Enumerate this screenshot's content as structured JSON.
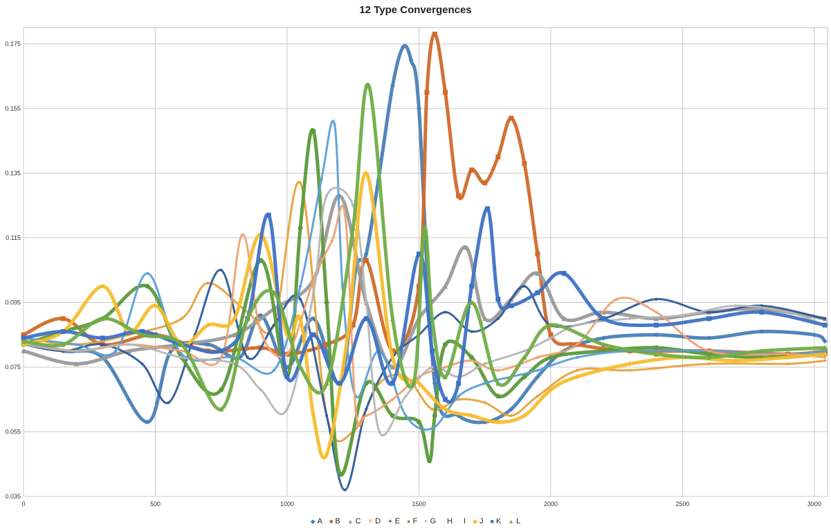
{
  "chart_data": {
    "type": "scatter",
    "title": "12 Type Convergences",
    "xlabel": "",
    "ylabel": "",
    "xlim": [
      0,
      3050
    ],
    "ylim": [
      0.035,
      0.18
    ],
    "x_ticks": [
      0,
      500,
      1000,
      1500,
      2000,
      2500,
      3000
    ],
    "y_ticks": [
      0.035,
      0.055,
      0.075,
      0.095,
      0.115,
      0.135,
      0.155,
      0.175
    ],
    "y_tick_labels": [
      "0.035",
      "0.055",
      "0.075",
      "0.095",
      "0.115",
      "0.135",
      "0.155",
      "0.175"
    ],
    "grid": true,
    "legend_position": "bottom",
    "series": [
      {
        "name": "A",
        "marker": "diamond",
        "color": "#4a7fb5",
        "x": [
          0,
          150,
          300,
          470,
          560,
          700,
          820,
          900,
          1000,
          1100,
          1200,
          1260,
          1300,
          1350,
          1400,
          1440,
          1470,
          1500,
          1560,
          1650,
          1750,
          1850,
          1950,
          2050,
          2200,
          2400,
          2600,
          2800,
          3000,
          3040
        ],
        "y": [
          0.083,
          0.08,
          0.078,
          0.058,
          0.08,
          0.082,
          0.078,
          0.091,
          0.075,
          0.09,
          0.07,
          0.105,
          0.11,
          0.135,
          0.162,
          0.174,
          0.17,
          0.155,
          0.07,
          0.06,
          0.058,
          0.062,
          0.072,
          0.08,
          0.084,
          0.085,
          0.084,
          0.086,
          0.085,
          0.083
        ]
      },
      {
        "name": "B",
        "marker": "square",
        "color": "#d06a2a",
        "x": [
          0,
          150,
          300,
          500,
          700,
          900,
          1000,
          1150,
          1250,
          1300,
          1400,
          1500,
          1530,
          1560,
          1600,
          1650,
          1700,
          1750,
          1800,
          1850,
          1900,
          1950,
          2000,
          2100,
          2300,
          2600,
          2900,
          3040
        ],
        "y": [
          0.085,
          0.09,
          0.082,
          0.085,
          0.08,
          0.081,
          0.079,
          0.082,
          0.088,
          0.108,
          0.08,
          0.1,
          0.16,
          0.178,
          0.16,
          0.128,
          0.136,
          0.132,
          0.14,
          0.152,
          0.138,
          0.11,
          0.085,
          0.082,
          0.08,
          0.08,
          0.079,
          0.08
        ]
      },
      {
        "name": "C",
        "marker": "triangle",
        "color": "#9a9a9a",
        "x": [
          0,
          200,
          400,
          600,
          800,
          950,
          1100,
          1200,
          1300,
          1400,
          1500,
          1600,
          1680,
          1750,
          1850,
          1950,
          2050,
          2200,
          2400,
          2600,
          2800,
          3040
        ],
        "y": [
          0.08,
          0.076,
          0.08,
          0.082,
          0.085,
          0.093,
          0.102,
          0.128,
          0.095,
          0.075,
          0.09,
          0.1,
          0.112,
          0.09,
          0.096,
          0.104,
          0.09,
          0.092,
          0.09,
          0.092,
          0.093,
          0.09
        ]
      },
      {
        "name": "D",
        "marker": "x",
        "color": "#e6a23c",
        "x": [
          0,
          200,
          400,
          600,
          700,
          850,
          950,
          1050,
          1150,
          1250,
          1350,
          1450,
          1550,
          1650,
          1750,
          1850,
          1950,
          2100,
          2300,
          2600,
          2900,
          3040
        ],
        "y": [
          0.084,
          0.082,
          0.085,
          0.09,
          0.101,
          0.092,
          0.088,
          0.132,
          0.06,
          0.055,
          0.07,
          0.072,
          0.062,
          0.065,
          0.064,
          0.06,
          0.066,
          0.074,
          0.074,
          0.076,
          0.076,
          0.077
        ]
      },
      {
        "name": "E",
        "marker": "star",
        "color": "#2e5a9a",
        "x": [
          0,
          150,
          300,
          450,
          550,
          650,
          750,
          850,
          950,
          1050,
          1150,
          1220,
          1300,
          1400,
          1500,
          1600,
          1700,
          1800,
          1900,
          2000,
          2200,
          2400,
          2600,
          2800,
          3040
        ],
        "y": [
          0.082,
          0.08,
          0.082,
          0.076,
          0.064,
          0.085,
          0.105,
          0.078,
          0.088,
          0.096,
          0.06,
          0.037,
          0.062,
          0.078,
          0.085,
          0.092,
          0.086,
          0.09,
          0.1,
          0.088,
          0.09,
          0.096,
          0.092,
          0.094,
          0.09
        ]
      },
      {
        "name": "F",
        "marker": "circle",
        "color": "#5b9a3b",
        "x": [
          0,
          150,
          300,
          470,
          600,
          750,
          900,
          1000,
          1050,
          1100,
          1150,
          1200,
          1300,
          1400,
          1500,
          1540,
          1560,
          1600,
          1700,
          1800,
          1900,
          2000,
          2200,
          2400,
          2600,
          2800,
          3040
        ],
        "y": [
          0.082,
          0.086,
          0.09,
          0.1,
          0.078,
          0.068,
          0.108,
          0.072,
          0.118,
          0.148,
          0.095,
          0.042,
          0.07,
          0.06,
          0.058,
          0.046,
          0.06,
          0.082,
          0.078,
          0.066,
          0.072,
          0.078,
          0.08,
          0.081,
          0.079,
          0.078,
          0.079
        ]
      },
      {
        "name": "G",
        "marker": "plus",
        "color": "#5aa0d6",
        "x": [
          0,
          200,
          350,
          470,
          600,
          800,
          950,
          1050,
          1130,
          1180,
          1210,
          1260,
          1350,
          1450,
          1550,
          1650,
          1750,
          1850,
          1950,
          2100,
          2300,
          2600,
          2900,
          3040
        ],
        "y": [
          0.084,
          0.082,
          0.08,
          0.104,
          0.079,
          0.078,
          0.074,
          0.1,
          0.133,
          0.15,
          0.1,
          0.066,
          0.08,
          0.06,
          0.056,
          0.066,
          0.07,
          0.072,
          0.074,
          0.078,
          0.08,
          0.08,
          0.079,
          0.08
        ]
      },
      {
        "name": "H",
        "marker": "dash",
        "color": "#f0a070",
        "x": [
          0,
          200,
          400,
          600,
          750,
          830,
          900,
          1000,
          1100,
          1170,
          1220,
          1260,
          1300,
          1400,
          1500,
          1600,
          1700,
          1800,
          1950,
          2100,
          2250,
          2400,
          2600,
          2900,
          3040
        ],
        "y": [
          0.083,
          0.08,
          0.082,
          0.08,
          0.078,
          0.116,
          0.086,
          0.079,
          0.102,
          0.114,
          0.122,
          0.062,
          0.06,
          0.065,
          0.072,
          0.075,
          0.077,
          0.074,
          0.078,
          0.082,
          0.096,
          0.092,
          0.08,
          0.079,
          0.078
        ]
      },
      {
        "name": "I",
        "marker": "dash",
        "color": "#b5b5b5",
        "x": [
          0,
          200,
          400,
          600,
          800,
          900,
          1000,
          1100,
          1150,
          1250,
          1300,
          1350,
          1450,
          1550,
          1650,
          1750,
          1900,
          2000,
          2100,
          2300,
          2500,
          2700,
          2900,
          3040
        ],
        "y": [
          0.082,
          0.08,
          0.082,
          0.078,
          0.076,
          0.068,
          0.062,
          0.098,
          0.128,
          0.125,
          0.095,
          0.055,
          0.066,
          0.075,
          0.072,
          0.076,
          0.08,
          0.084,
          0.088,
          0.09,
          0.091,
          0.094,
          0.092,
          0.088
        ]
      },
      {
        "name": "J",
        "marker": "diamond",
        "color": "#f5bd2e",
        "x": [
          0,
          150,
          300,
          400,
          500,
          600,
          700,
          800,
          900,
          1000,
          1050,
          1100,
          1150,
          1230,
          1300,
          1400,
          1500,
          1600,
          1700,
          1800,
          1900,
          2000,
          2100,
          2300,
          2500,
          2700,
          2900,
          3040
        ],
        "y": [
          0.082,
          0.086,
          0.1,
          0.086,
          0.094,
          0.082,
          0.088,
          0.09,
          0.116,
          0.085,
          0.09,
          0.06,
          0.048,
          0.085,
          0.135,
          0.078,
          0.07,
          0.062,
          0.06,
          0.058,
          0.06,
          0.068,
          0.072,
          0.076,
          0.078,
          0.077,
          0.078,
          0.079
        ]
      },
      {
        "name": "K",
        "marker": "square",
        "color": "#3d72c4",
        "x": [
          0,
          150,
          300,
          450,
          600,
          750,
          850,
          930,
          1000,
          1100,
          1200,
          1300,
          1400,
          1500,
          1550,
          1600,
          1650,
          1700,
          1760,
          1800,
          1850,
          1950,
          2050,
          2200,
          2400,
          2600,
          2800,
          3040
        ],
        "y": [
          0.084,
          0.086,
          0.084,
          0.086,
          0.082,
          0.08,
          0.09,
          0.122,
          0.072,
          0.085,
          0.07,
          0.09,
          0.07,
          0.11,
          0.08,
          0.065,
          0.07,
          0.1,
          0.124,
          0.096,
          0.094,
          0.098,
          0.104,
          0.09,
          0.088,
          0.09,
          0.092,
          0.088
        ]
      },
      {
        "name": "L",
        "marker": "triangle",
        "color": "#71ad47",
        "x": [
          0,
          150,
          300,
          450,
          600,
          750,
          850,
          950,
          1050,
          1150,
          1250,
          1310,
          1400,
          1480,
          1520,
          1550,
          1600,
          1700,
          1800,
          1900,
          2000,
          2200,
          2400,
          2600,
          2800,
          3040
        ],
        "y": [
          0.083,
          0.082,
          0.09,
          0.085,
          0.082,
          0.062,
          0.09,
          0.098,
          0.075,
          0.07,
          0.118,
          0.162,
          0.09,
          0.07,
          0.118,
          0.09,
          0.072,
          0.095,
          0.07,
          0.078,
          0.088,
          0.082,
          0.079,
          0.078,
          0.08,
          0.081
        ]
      }
    ]
  }
}
